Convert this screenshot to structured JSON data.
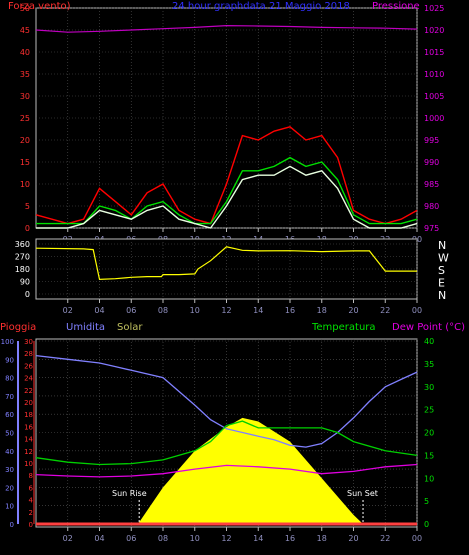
{
  "chart_data": [
    {
      "type": "line",
      "title": "24 hour graphdata  21 Maggio 2018",
      "left_axis_label": "Forza vento)",
      "right_axis_label": "Pressione",
      "x_ticks": [
        "02",
        "04",
        "06",
        "08",
        "10",
        "12",
        "14",
        "16",
        "18",
        "20",
        "22",
        "00"
      ],
      "left_axis": {
        "min": 0,
        "max": 50,
        "ticks": [
          "0",
          "5",
          "10",
          "15",
          "20",
          "25",
          "30",
          "35",
          "40",
          "45",
          "50"
        ]
      },
      "right_axis": {
        "min": 975,
        "max": 1025,
        "ticks": [
          "975",
          "980",
          "985",
          "990",
          "995",
          "1000",
          "1005",
          "1010",
          "1015",
          "1020",
          "1025"
        ]
      },
      "grid": true,
      "series": [
        {
          "axis": "right",
          "color": "#c000c0",
          "x": [
            0,
            2,
            4,
            6,
            8,
            10,
            12,
            14,
            16,
            18,
            20,
            22,
            24
          ],
          "y": [
            1020.0,
            1019.5,
            1019.7,
            1020.0,
            1020.3,
            1020.6,
            1021.0,
            1020.9,
            1020.8,
            1020.6,
            1020.5,
            1020.4,
            1020.2
          ]
        },
        {
          "axis": "left",
          "color": "#ff0000",
          "x": [
            0,
            1,
            2,
            3,
            4,
            5,
            6,
            7,
            8,
            9,
            10,
            11,
            12,
            13,
            14,
            15,
            16,
            17,
            18,
            19,
            20,
            21,
            22,
            23,
            24
          ],
          "y": [
            3,
            2,
            1,
            2,
            9,
            6,
            3,
            8,
            10,
            4,
            2,
            1,
            10,
            21,
            20,
            22,
            23,
            20,
            21,
            16,
            4,
            2,
            1,
            2,
            4
          ]
        },
        {
          "axis": "left",
          "color": "#00e000",
          "x": [
            0,
            1,
            2,
            3,
            4,
            5,
            6,
            7,
            8,
            9,
            10,
            11,
            12,
            13,
            14,
            15,
            16,
            17,
            18,
            19,
            20,
            21,
            22,
            23,
            24
          ],
          "y": [
            1,
            1,
            1,
            1,
            5,
            4,
            2,
            5,
            6,
            3,
            1,
            1,
            6,
            13,
            13,
            14,
            16,
            14,
            15,
            11,
            3,
            1,
            1,
            1,
            2
          ]
        },
        {
          "axis": "left",
          "color": "#e8ffe0",
          "x": [
            0,
            1,
            2,
            3,
            4,
            5,
            6,
            7,
            8,
            9,
            10,
            11,
            12,
            13,
            14,
            15,
            16,
            17,
            18,
            19,
            20,
            21,
            22,
            23,
            24
          ],
          "y": [
            0,
            0,
            0,
            1,
            4,
            3,
            2,
            4,
            5,
            2,
            1,
            0,
            5,
            11,
            12,
            12,
            14,
            12,
            13,
            9,
            2,
            0,
            0,
            0,
            1
          ]
        }
      ]
    },
    {
      "type": "line",
      "x_ticks": [
        "02",
        "04",
        "06",
        "08",
        "10",
        "12",
        "14",
        "16",
        "18",
        "20",
        "22",
        "00"
      ],
      "left_axis": {
        "min": 0,
        "max": 360,
        "ticks": [
          "0",
          "90",
          "180",
          "270",
          "360"
        ]
      },
      "right_axis_labels": [
        "N",
        "W",
        "S",
        "E",
        "N"
      ],
      "grid": true,
      "series": [
        {
          "axis": "left",
          "color": "#ffff00",
          "x": [
            0,
            3,
            3.6,
            4,
            5,
            6,
            7,
            7.9,
            8,
            9,
            10,
            10.2,
            11,
            12,
            13,
            14,
            16,
            18,
            20,
            21,
            22,
            24
          ],
          "y": [
            330,
            325,
            320,
            105,
            110,
            120,
            125,
            125,
            140,
            140,
            145,
            180,
            240,
            340,
            315,
            310,
            312,
            305,
            310,
            310,
            165,
            165
          ]
        }
      ]
    },
    {
      "type": "line",
      "labels": {
        "rain": "Pioggia",
        "humidity": "Umidita",
        "solar": "Solar",
        "temperature": "Temperatura",
        "dewpoint": "Dew Point (°C)"
      },
      "x_ticks": [
        "02",
        "04",
        "06",
        "08",
        "10",
        "12",
        "14",
        "16",
        "18",
        "20",
        "22",
        "00"
      ],
      "humidity_axis": {
        "min": 0,
        "max": 100,
        "ticks": [
          "0",
          "10",
          "20",
          "30",
          "40",
          "50",
          "60",
          "70",
          "80",
          "90",
          "100"
        ]
      },
      "rain_axis": {
        "min": 0,
        "max": 30,
        "ticks": [
          "0",
          "2",
          "4",
          "6",
          "8",
          "10",
          "12",
          "14",
          "16",
          "18",
          "20",
          "22",
          "24",
          "26",
          "28",
          "30"
        ]
      },
      "temperature_axis": {
        "min": 0,
        "max": 40,
        "ticks": [
          "0",
          "5",
          "10",
          "15",
          "20",
          "25",
          "30",
          "35",
          "40"
        ]
      },
      "annotations": {
        "sunrise_label": "Sun Rise",
        "sunset_label": "Sun Set",
        "sunrise_hour": 6.5,
        "sunset_hour": 20.6
      },
      "grid": true,
      "series": [
        {
          "axis": "humidity",
          "color": "#8080ff",
          "x": [
            0,
            2,
            4,
            5,
            6,
            8,
            10,
            11,
            12,
            13,
            14,
            15,
            16,
            17,
            18,
            19,
            20,
            21,
            22,
            23,
            24
          ],
          "y": [
            92,
            90,
            88,
            86,
            84,
            80,
            65,
            57,
            52,
            50,
            48,
            46,
            43,
            42,
            44,
            50,
            58,
            67,
            75,
            79,
            83
          ]
        },
        {
          "axis": "temperature",
          "color": "#00d000",
          "x": [
            0,
            2,
            4,
            6,
            8,
            10,
            11,
            12,
            13,
            14,
            16,
            18,
            19,
            20,
            22,
            24
          ],
          "y": [
            14.5,
            13.5,
            13,
            13.2,
            14,
            16,
            18,
            21.5,
            22.5,
            21,
            21,
            21,
            20,
            18,
            16,
            15
          ]
        },
        {
          "axis": "temperature",
          "color": "#e000e0",
          "x": [
            0,
            2,
            4,
            6,
            8,
            10,
            12,
            14,
            16,
            18,
            20,
            22,
            24
          ],
          "y": [
            10.8,
            10.5,
            10.3,
            10.5,
            11,
            12,
            12.8,
            12.5,
            12,
            11,
            11.5,
            12.5,
            13
          ]
        },
        {
          "axis": "humidity",
          "color": "#ffff00",
          "kind": "area",
          "x": [
            0,
            6.2,
            6.5,
            8,
            10,
            12,
            13,
            14,
            16,
            18,
            20,
            20.6,
            24
          ],
          "y": [
            0,
            0,
            1,
            20,
            40,
            53,
            58,
            56,
            45,
            25,
            5,
            0,
            0
          ]
        },
        {
          "axis": "rain",
          "color": "#ff4040",
          "x": [
            0,
            24
          ],
          "y": [
            0,
            0
          ]
        }
      ]
    }
  ]
}
